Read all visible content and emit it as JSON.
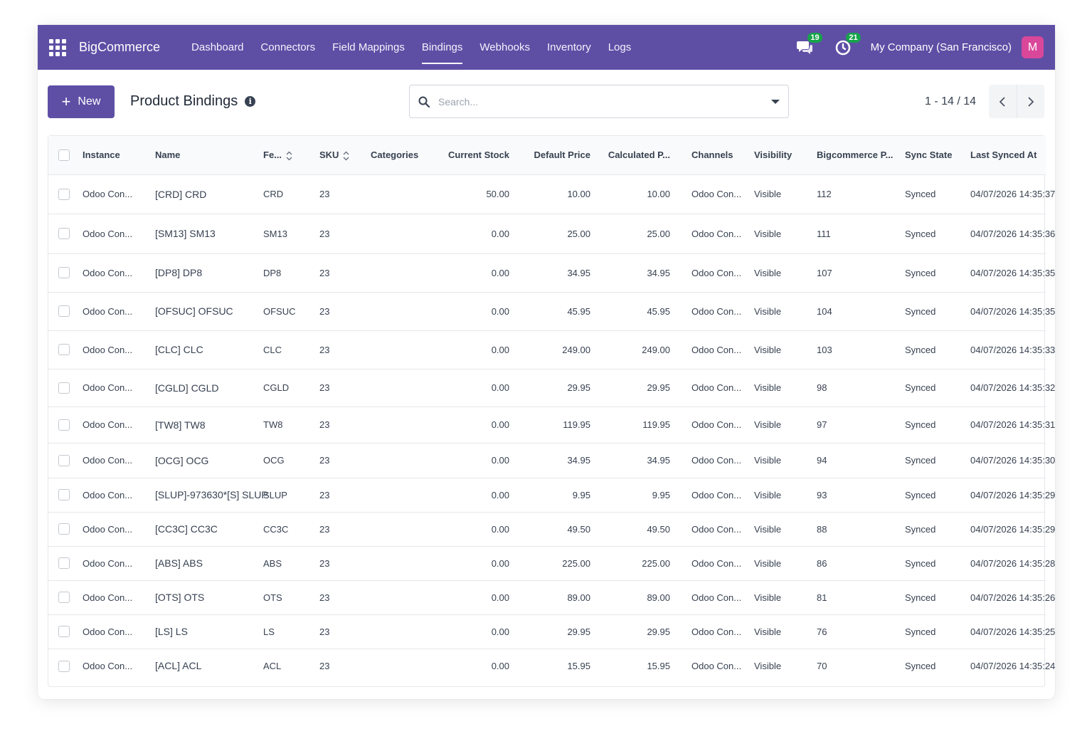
{
  "navbar": {
    "brand": "BigCommerce",
    "menu": [
      "Dashboard",
      "Connectors",
      "Field Mappings",
      "Bindings",
      "Webhooks",
      "Inventory",
      "Logs"
    ],
    "active_menu": "Bindings",
    "messages_count": "19",
    "activities_count": "21",
    "company": "My Company (San Francisco)",
    "avatar_initial": "M",
    "avatar_color": "#d9479a",
    "accent_color": "#5e4fa5",
    "icons": [
      "apps-grid-icon",
      "chat-icon",
      "clock-icon"
    ]
  },
  "control_panel": {
    "new_label": "New",
    "title": "Product Bindings",
    "search_placeholder": "Search...",
    "pager_value": "1 - 14 / 14"
  },
  "table": {
    "headers": [
      "Instance",
      "Name",
      "Fe...",
      "SKU",
      "Categories",
      "Current Stock",
      "Default Price",
      "Calculated P...",
      "Channels",
      "Visibility",
      "Bigcommerce P...",
      "Sync State",
      "Last Synced At"
    ],
    "rows": [
      [
        "Odoo Con...",
        "[CRD] CRD",
        "CRD",
        "23",
        "",
        "50.00",
        "10.00",
        "10.00",
        "Odoo Con...",
        "Visible",
        "112",
        "Synced",
        "04/07/2026 14:35:37"
      ],
      [
        "Odoo Con...",
        "[SM13] SM13",
        "SM13",
        "23",
        "",
        "0.00",
        "25.00",
        "25.00",
        "Odoo Con...",
        "Visible",
        "111",
        "Synced",
        "04/07/2026 14:35:36"
      ],
      [
        "Odoo Con...",
        "[DP8] DP8",
        "DP8",
        "23",
        "",
        "0.00",
        "34.95",
        "34.95",
        "Odoo Con...",
        "Visible",
        "107",
        "Synced",
        "04/07/2026 14:35:35"
      ],
      [
        "Odoo Con...",
        "[OFSUC] OFSUC",
        "OFSUC",
        "23",
        "",
        "0.00",
        "45.95",
        "45.95",
        "Odoo Con...",
        "Visible",
        "104",
        "Synced",
        "04/07/2026 14:35:35"
      ],
      [
        "Odoo Con...",
        "[CLC] CLC",
        "CLC",
        "23",
        "",
        "0.00",
        "249.00",
        "249.00",
        "Odoo Con...",
        "Visible",
        "103",
        "Synced",
        "04/07/2026 14:35:33"
      ],
      [
        "Odoo Con...",
        "[CGLD] CGLD",
        "CGLD",
        "23",
        "",
        "0.00",
        "29.95",
        "29.95",
        "Odoo Con...",
        "Visible",
        "98",
        "Synced",
        "04/07/2026 14:35:32"
      ],
      [
        "Odoo Con...",
        "[TW8] TW8",
        "TW8",
        "23",
        "",
        "0.00",
        "119.95",
        "119.95",
        "Odoo Con...",
        "Visible",
        "97",
        "Synced",
        "04/07/2026 14:35:31"
      ],
      [
        "Odoo Con...",
        "[OCG] OCG",
        "OCG",
        "23",
        "",
        "0.00",
        "34.95",
        "34.95",
        "Odoo Con...",
        "Visible",
        "94",
        "Synced",
        "04/07/2026 14:35:30"
      ],
      [
        "Odoo Con...",
        "[SLUP]-973630*[S] SLUP",
        "SLUP",
        "23",
        "",
        "0.00",
        "9.95",
        "9.95",
        "Odoo Con...",
        "Visible",
        "93",
        "Synced",
        "04/07/2026 14:35:29"
      ],
      [
        "Odoo Con...",
        "[CC3C] CC3C",
        "CC3C",
        "23",
        "",
        "0.00",
        "49.50",
        "49.50",
        "Odoo Con...",
        "Visible",
        "88",
        "Synced",
        "04/07/2026 14:35:29"
      ],
      [
        "Odoo Con...",
        "[ABS] ABS",
        "ABS",
        "23",
        "",
        "0.00",
        "225.00",
        "225.00",
        "Odoo Con...",
        "Visible",
        "86",
        "Synced",
        "04/07/2026 14:35:28"
      ],
      [
        "Odoo Con...",
        "[OTS] OTS",
        "OTS",
        "23",
        "",
        "0.00",
        "89.00",
        "89.00",
        "Odoo Con...",
        "Visible",
        "81",
        "Synced",
        "04/07/2026 14:35:26"
      ],
      [
        "Odoo Con...",
        "[LS] LS",
        "LS",
        "23",
        "",
        "0.00",
        "29.95",
        "29.95",
        "Odoo Con...",
        "Visible",
        "76",
        "Synced",
        "04/07/2026 14:35:25"
      ],
      [
        "Odoo Con...",
        "[ACL] ACL",
        "ACL",
        "23",
        "",
        "0.00",
        "15.95",
        "15.95",
        "Odoo Con...",
        "Visible",
        "70",
        "Synced",
        "04/07/2026 14:35:24"
      ]
    ]
  }
}
